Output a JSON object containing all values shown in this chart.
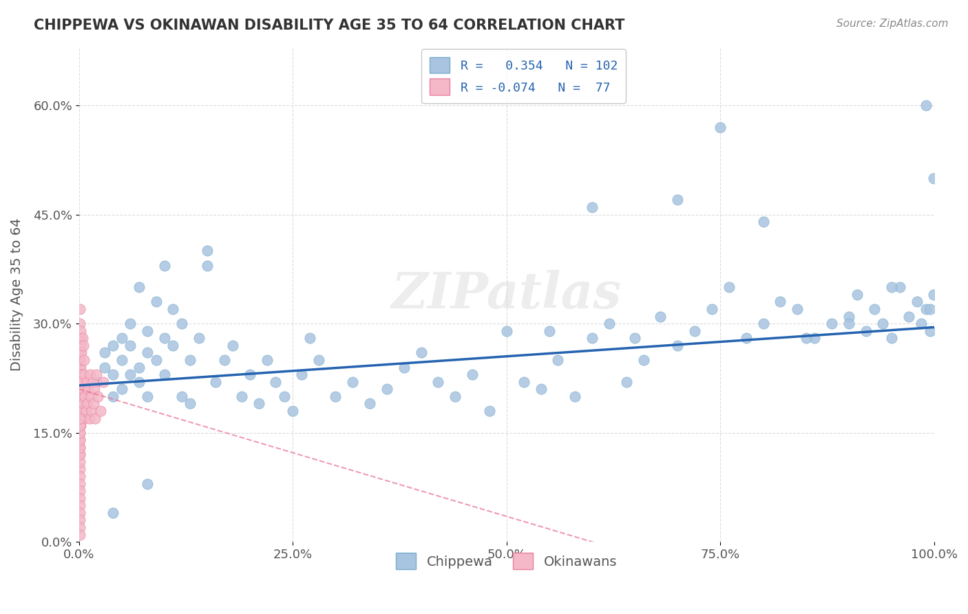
{
  "title": "CHIPPEWA VS OKINAWAN DISABILITY AGE 35 TO 64 CORRELATION CHART",
  "source": "Source: ZipAtlas.com",
  "xlabel": "",
  "ylabel": "Disability Age 35 to 64",
  "xlim": [
    0,
    1.0
  ],
  "ylim": [
    0,
    0.68
  ],
  "xticks": [
    0.0,
    0.25,
    0.5,
    0.75,
    1.0
  ],
  "xtick_labels": [
    "0.0%",
    "25.0%",
    "50.0%",
    "75.0%",
    "100.0%"
  ],
  "yticks": [
    0.0,
    0.15,
    0.3,
    0.45,
    0.6
  ],
  "ytick_labels": [
    "0.0%",
    "15.0%",
    "30.0%",
    "45.0%",
    "60.0%"
  ],
  "chippewa_R": 0.354,
  "chippewa_N": 102,
  "okinawan_R": -0.074,
  "okinawan_N": 77,
  "blue_color": "#a8c4e0",
  "blue_edge": "#7aadcc",
  "pink_color": "#f4b8c8",
  "pink_edge": "#e880a0",
  "blue_line_color": "#2563b0",
  "pink_line_color": "#e87090",
  "watermark": "ZIPatlas",
  "legend_color": "#2563b0",
  "chippewa_x": [
    0.02,
    0.03,
    0.03,
    0.04,
    0.04,
    0.04,
    0.05,
    0.05,
    0.05,
    0.06,
    0.06,
    0.06,
    0.07,
    0.07,
    0.07,
    0.08,
    0.08,
    0.08,
    0.09,
    0.09,
    0.1,
    0.1,
    0.1,
    0.11,
    0.11,
    0.12,
    0.12,
    0.13,
    0.13,
    0.14,
    0.15,
    0.15,
    0.16,
    0.17,
    0.18,
    0.19,
    0.2,
    0.21,
    0.22,
    0.23,
    0.24,
    0.25,
    0.26,
    0.27,
    0.28,
    0.3,
    0.32,
    0.34,
    0.36,
    0.38,
    0.4,
    0.42,
    0.44,
    0.46,
    0.48,
    0.5,
    0.52,
    0.54,
    0.56,
    0.58,
    0.6,
    0.62,
    0.64,
    0.66,
    0.68,
    0.7,
    0.72,
    0.74,
    0.76,
    0.78,
    0.8,
    0.82,
    0.84,
    0.86,
    0.88,
    0.9,
    0.91,
    0.92,
    0.93,
    0.94,
    0.95,
    0.96,
    0.97,
    0.98,
    0.985,
    0.99,
    0.995,
    0.999,
    0.04,
    0.08,
    0.55,
    0.6,
    0.65,
    0.7,
    0.75,
    0.8,
    0.85,
    0.9,
    0.95,
    0.99,
    0.995,
    0.999
  ],
  "chippewa_y": [
    0.22,
    0.24,
    0.26,
    0.2,
    0.23,
    0.27,
    0.25,
    0.21,
    0.28,
    0.23,
    0.27,
    0.3,
    0.24,
    0.22,
    0.35,
    0.26,
    0.2,
    0.29,
    0.25,
    0.33,
    0.28,
    0.23,
    0.38,
    0.27,
    0.32,
    0.2,
    0.3,
    0.25,
    0.19,
    0.28,
    0.4,
    0.38,
    0.22,
    0.25,
    0.27,
    0.2,
    0.23,
    0.19,
    0.25,
    0.22,
    0.2,
    0.18,
    0.23,
    0.28,
    0.25,
    0.2,
    0.22,
    0.19,
    0.21,
    0.24,
    0.26,
    0.22,
    0.2,
    0.23,
    0.18,
    0.29,
    0.22,
    0.21,
    0.25,
    0.2,
    0.28,
    0.3,
    0.22,
    0.25,
    0.31,
    0.27,
    0.29,
    0.32,
    0.35,
    0.28,
    0.3,
    0.33,
    0.32,
    0.28,
    0.3,
    0.31,
    0.34,
    0.29,
    0.32,
    0.3,
    0.28,
    0.35,
    0.31,
    0.33,
    0.3,
    0.32,
    0.29,
    0.34,
    0.04,
    0.08,
    0.29,
    0.46,
    0.28,
    0.47,
    0.57,
    0.44,
    0.28,
    0.3,
    0.35,
    0.6,
    0.32,
    0.5
  ],
  "okinawan_x": [
    0.001,
    0.001,
    0.001,
    0.001,
    0.001,
    0.001,
    0.001,
    0.001,
    0.001,
    0.001,
    0.001,
    0.001,
    0.001,
    0.001,
    0.001,
    0.001,
    0.001,
    0.002,
    0.002,
    0.002,
    0.002,
    0.002,
    0.003,
    0.003,
    0.003,
    0.003,
    0.004,
    0.004,
    0.004,
    0.005,
    0.005,
    0.006,
    0.006,
    0.007,
    0.008,
    0.009,
    0.01,
    0.011,
    0.012,
    0.013,
    0.014,
    0.015,
    0.016,
    0.017,
    0.018,
    0.019,
    0.02,
    0.022,
    0.025,
    0.028,
    0.001,
    0.001,
    0.001,
    0.001,
    0.002,
    0.002,
    0.003,
    0.004,
    0.005,
    0.006,
    0.001,
    0.001,
    0.001,
    0.001,
    0.001,
    0.001,
    0.001,
    0.001,
    0.001,
    0.001,
    0.001,
    0.001,
    0.001,
    0.001,
    0.001,
    0.001,
    0.001
  ],
  "okinawan_y": [
    0.2,
    0.22,
    0.18,
    0.24,
    0.19,
    0.21,
    0.23,
    0.17,
    0.25,
    0.16,
    0.27,
    0.15,
    0.26,
    0.14,
    0.28,
    0.13,
    0.12,
    0.2,
    0.18,
    0.22,
    0.16,
    0.24,
    0.19,
    0.21,
    0.17,
    0.23,
    0.2,
    0.18,
    0.22,
    0.19,
    0.21,
    0.17,
    0.23,
    0.2,
    0.18,
    0.22,
    0.19,
    0.21,
    0.17,
    0.23,
    0.2,
    0.18,
    0.22,
    0.19,
    0.21,
    0.17,
    0.23,
    0.2,
    0.18,
    0.22,
    0.28,
    0.3,
    0.25,
    0.32,
    0.27,
    0.29,
    0.26,
    0.28,
    0.27,
    0.25,
    0.1,
    0.09,
    0.08,
    0.11,
    0.07,
    0.12,
    0.06,
    0.13,
    0.05,
    0.14,
    0.04,
    0.15,
    0.03,
    0.16,
    0.02,
    0.17,
    0.01
  ]
}
